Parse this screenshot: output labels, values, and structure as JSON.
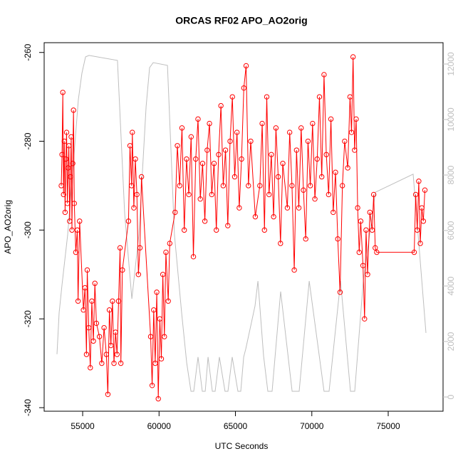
{
  "chart_data": {
    "type": "line",
    "title": "ORCAS RF02 APO_AO2orig",
    "xlabel": "UTC Seconds",
    "ylabel": "APO_AO2orig",
    "xlim": [
      52480,
      78590
    ],
    "xticks": [
      55000,
      60000,
      65000,
      70000,
      75000
    ],
    "ylim": [
      -340.8,
      -257.8
    ],
    "yticks": [
      -340,
      -320,
      -300,
      -280,
      -260
    ],
    "y2lim": [
      -513,
      12769
    ],
    "y2ticks": [
      0,
      2000,
      4000,
      6000,
      8000,
      10000,
      12000
    ],
    "series": [
      {
        "color": "#bebebe",
        "axis": "y2",
        "marker": false,
        "x": [
          53320,
          53460,
          53650,
          54020,
          54390,
          54720,
          54950,
          55190,
          55420,
          57280,
          57750,
          58220,
          58680,
          59150,
          59380,
          59620,
          60550,
          61010,
          61480,
          61810,
          62090,
          62270,
          62550,
          62830,
          63020,
          63210,
          63490,
          63670,
          63950,
          64320,
          64510,
          64790,
          65160,
          65350,
          65540,
          65680,
          66280,
          66470,
          66840,
          67120,
          67400,
          67960,
          68710,
          69170,
          69830,
          70800,
          71130,
          71880,
          72530,
          72810,
          73370,
          74160,
          76630,
          76960,
          77470
        ],
        "values": [
          1540,
          3030,
          4050,
          5850,
          8410,
          10720,
          11670,
          12260,
          12310,
          12130,
          6620,
          3540,
          5850,
          10460,
          11870,
          12050,
          11950,
          5850,
          3030,
          1230,
          205,
          205,
          1440,
          205,
          205,
          1440,
          205,
          205,
          1440,
          205,
          205,
          1440,
          205,
          205,
          1440,
          1740,
          3280,
          4180,
          1490,
          205,
          205,
          3800,
          205,
          205,
          4180,
          205,
          205,
          4180,
          205,
          205,
          4180,
          7380,
          8030,
          5850,
          2310
        ]
      },
      {
        "color": "#ff0000",
        "marker": true,
        "x": [
          53600,
          53650,
          53700,
          53750,
          53800,
          53850,
          53900,
          53950,
          54000,
          54050,
          54100,
          54150,
          54200,
          54250,
          54300,
          54350,
          54400,
          54450,
          54550,
          54650,
          54700,
          54800,
          55050,
          55150,
          55250,
          55300,
          55400,
          55500,
          55600,
          55700,
          55800,
          55900,
          56100,
          56250,
          56400,
          56550,
          56650,
          56750,
          56850,
          56950,
          57050,
          57150,
          57250,
          57350,
          57450,
          57500,
          57600,
          58000,
          58100,
          58200,
          58250,
          58350,
          58450,
          58550,
          58650,
          58750,
          58850,
          59450,
          59550,
          59650,
          59750,
          59850,
          59950,
          60050,
          60150,
          60250,
          60350,
          60450,
          60600,
          60700,
          61050,
          61200,
          61350,
          61500,
          61650,
          61800,
          61950,
          62100,
          62250,
          62400,
          62550,
          62700,
          62850,
          63000,
          63150,
          63300,
          63450,
          63600,
          63750,
          63900,
          64050,
          64200,
          64350,
          64500,
          64650,
          64800,
          64950,
          65100,
          65250,
          65400,
          65550,
          65700,
          65850,
          66000,
          66300,
          66600,
          66750,
          66900,
          67050,
          67200,
          67350,
          67500,
          67650,
          67800,
          67950,
          68100,
          68400,
          68550,
          68700,
          68850,
          69000,
          69150,
          69300,
          69450,
          69600,
          69750,
          69900,
          70050,
          70200,
          70350,
          70500,
          70650,
          70800,
          70950,
          71100,
          71250,
          71400,
          71550,
          71700,
          71850,
          72000,
          72150,
          72350,
          72500,
          72600,
          72700,
          72800,
          72900,
          73000,
          73100,
          73200,
          73350,
          73450,
          73550,
          73650,
          73800,
          73950,
          74050,
          74150,
          74250,
          76700,
          76800,
          76900,
          77000,
          77100,
          77200,
          77300,
          77400
        ],
        "values": [
          -290,
          -283,
          -269,
          -292,
          -280,
          -296,
          -284,
          -278,
          -294,
          -286,
          -281,
          -298,
          -288,
          -279,
          -300,
          -285,
          -273,
          -294,
          -305,
          -300,
          -316,
          -298,
          -318,
          -313,
          -328,
          -309,
          -322,
          -331,
          -316,
          -325,
          -312,
          -321,
          -324,
          -330,
          -322,
          -328,
          -337,
          -318,
          -326,
          -316,
          -330,
          -323,
          -328,
          -316,
          -304,
          -330,
          -309,
          -298,
          -281,
          -290,
          -278,
          -295,
          -284,
          -292,
          -310,
          -304,
          -288,
          -324,
          -335,
          -318,
          -330,
          -314,
          -338,
          -320,
          -329,
          -310,
          -324,
          -305,
          -316,
          -303,
          -296,
          -281,
          -290,
          -277,
          -300,
          -284,
          -292,
          -279,
          -306,
          -284,
          -275,
          -293,
          -285,
          -298,
          -282,
          -276,
          -292,
          -285,
          -300,
          -283,
          -272,
          -290,
          -282,
          -299,
          -280,
          -270,
          -288,
          -278,
          -295,
          -284,
          -268,
          -263,
          -290,
          -280,
          -297,
          -290,
          -276,
          -300,
          -270,
          -292,
          -283,
          -297,
          -277,
          -288,
          -303,
          -285,
          -295,
          -278,
          -290,
          -309,
          -282,
          -295,
          -277,
          -291,
          -302,
          -280,
          -290,
          -276,
          -293,
          -284,
          -270,
          -288,
          -265,
          -283,
          -292,
          -275,
          -296,
          -287,
          -302,
          -314,
          -290,
          -280,
          -286,
          -270,
          -278,
          -261,
          -282,
          -275,
          -295,
          -305,
          -298,
          -308,
          -320,
          -300,
          -310,
          -296,
          -300,
          -292,
          -304,
          -305,
          -305,
          -292,
          -300,
          -289,
          -303,
          -295,
          -298,
          -291
        ]
      }
    ]
  }
}
